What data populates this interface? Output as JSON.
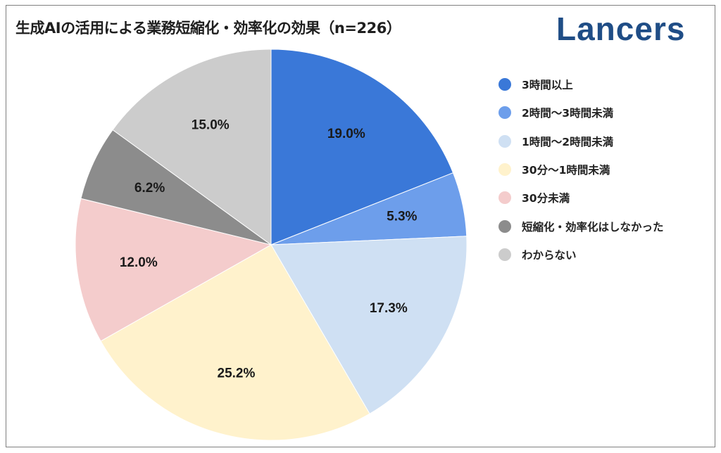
{
  "title": "生成AIの活用による業務短縮化・効率化の効果（n=226）",
  "logo_text": "Lancers",
  "chart_data": {
    "type": "pie",
    "title": "生成AIの活用による業務短縮化・効率化の効果（n=226）",
    "legend_position": "right",
    "start": "12 o'clock, clockwise",
    "slices": [
      {
        "name": "3時間以上",
        "value": 19.0,
        "label": "19.0%",
        "color": "#3a78d8"
      },
      {
        "name": "2時間〜3時間未満",
        "value": 5.3,
        "label": "5.3%",
        "color": "#6d9eeb"
      },
      {
        "name": "1時間〜2時間未満",
        "value": 17.3,
        "label": "17.3%",
        "color": "#cfe0f3"
      },
      {
        "name": "30分〜1時間未満",
        "value": 25.2,
        "label": "25.2%",
        "color": "#fff2cc"
      },
      {
        "name": "30分未満",
        "value": 12.0,
        "label": "12.0%",
        "color": "#f4cccc"
      },
      {
        "name": "短縮化・効率化はしなかった",
        "value": 6.2,
        "label": "6.2%",
        "color": "#8c8c8c"
      },
      {
        "name": "わからない",
        "value": 15.0,
        "label": "15.0%",
        "color": "#cccccc"
      }
    ]
  }
}
